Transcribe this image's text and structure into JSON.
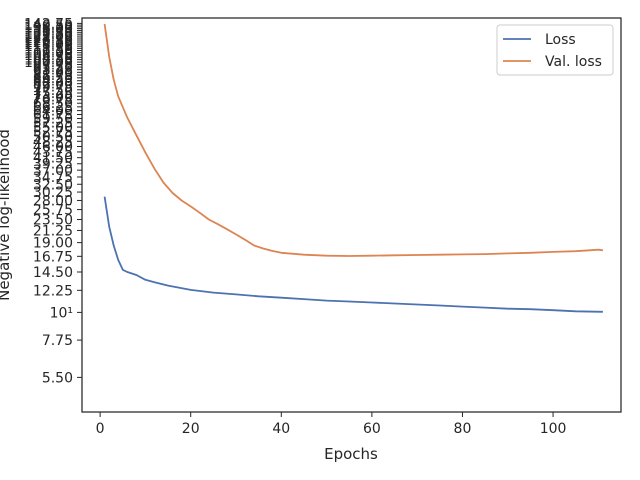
{
  "chart_data": {
    "type": "line",
    "xlabel": "Epochs",
    "ylabel": "Negative log-likelihood",
    "y_scale": "log",
    "xlim": [
      -4,
      115
    ],
    "ylim": [
      4.0,
      150
    ],
    "grid": false,
    "legend_position": "top-right",
    "x_ticks": [
      0,
      20,
      40,
      60,
      80,
      100
    ],
    "x_tick_labels": [
      "0",
      "20",
      "40",
      "60",
      "80",
      "100"
    ],
    "y_ticks": [
      5.5,
      7.75,
      10,
      12.25,
      14.5,
      16.75,
      19,
      21.25,
      23.5,
      25.75,
      28,
      30.25,
      32.5,
      34.75,
      37,
      39.25,
      41.5,
      43.75,
      46,
      48.25,
      50.5,
      52.75,
      55,
      57.25,
      59.5,
      61.75,
      64,
      66.25,
      68.5,
      70.75,
      73,
      75.25,
      77.5,
      79.75,
      82,
      84.25,
      86.5,
      88.75,
      91,
      93.25,
      95.5,
      97.75,
      100,
      102.25,
      104.5,
      106.75,
      109,
      111.25,
      113.5,
      115.75,
      118,
      120.25,
      122.5,
      124.75,
      127,
      129.25,
      131.5,
      133.75,
      136,
      138.25,
      140.5,
      142.75
    ],
    "y_tick_labels": [
      "5.50",
      "7.75",
      "10¹",
      "12.25",
      "14.50",
      "16.75",
      "19.00",
      "21.25",
      "23.50",
      "25.75",
      "28.00",
      "30.25",
      "32.50",
      "34.75",
      "37.00",
      "39.25",
      "41.50",
      "43.75",
      "46.00",
      "48.25",
      "50.50",
      "52.75",
      "55.00",
      "57.25",
      "59.50",
      "61.75",
      "64.00",
      "66.25",
      "68.50",
      "70.75",
      "73.00",
      "75.25",
      "77.50",
      "79.75",
      "82.00",
      "84.25",
      "86.50",
      "88.75",
      "91.00",
      "93.25",
      "95.50",
      "97.75",
      "100.00",
      "102.25",
      "104.50",
      "106.75",
      "109.00",
      "111.25",
      "113.50",
      "115.75",
      "118.00",
      "120.25",
      "122.50",
      "124.75",
      "127.00",
      "129.25",
      "131.50",
      "133.75",
      "136.00",
      "138.25",
      "140.50",
      "142.75"
    ],
    "series": [
      {
        "name": "Loss",
        "color": "#4c72b0",
        "x": [
          1,
          2,
          3,
          4,
          5,
          6,
          8,
          10,
          12,
          15,
          20,
          25,
          30,
          35,
          40,
          45,
          50,
          55,
          60,
          65,
          70,
          75,
          80,
          85,
          90,
          95,
          100,
          105,
          111
        ],
        "y": [
          29,
          22,
          18.5,
          16.2,
          14.8,
          14.5,
          14.1,
          13.5,
          13.2,
          12.8,
          12.3,
          12.0,
          11.8,
          11.6,
          11.45,
          11.3,
          11.15,
          11.05,
          10.95,
          10.85,
          10.75,
          10.65,
          10.55,
          10.45,
          10.35,
          10.3,
          10.2,
          10.1,
          10.05
        ]
      },
      {
        "name": "Val. loss",
        "color": "#dd8452",
        "x": [
          1,
          2,
          3,
          4,
          5,
          6,
          8,
          10,
          12,
          14,
          16,
          18,
          20,
          22,
          24,
          26,
          28,
          30,
          32,
          34,
          36,
          38,
          40,
          45,
          50,
          55,
          60,
          65,
          70,
          75,
          80,
          85,
          90,
          95,
          100,
          105,
          108,
          110,
          111
        ],
        "y": [
          142,
          105,
          85,
          73,
          66,
          60,
          51,
          43.5,
          37.5,
          33,
          30,
          28,
          26.5,
          25,
          23.5,
          22.5,
          21.5,
          20.5,
          19.5,
          18.5,
          18.0,
          17.6,
          17.3,
          17.0,
          16.85,
          16.8,
          16.85,
          16.9,
          16.95,
          17.0,
          17.05,
          17.1,
          17.2,
          17.3,
          17.45,
          17.55,
          17.7,
          17.8,
          17.7
        ]
      }
    ]
  }
}
